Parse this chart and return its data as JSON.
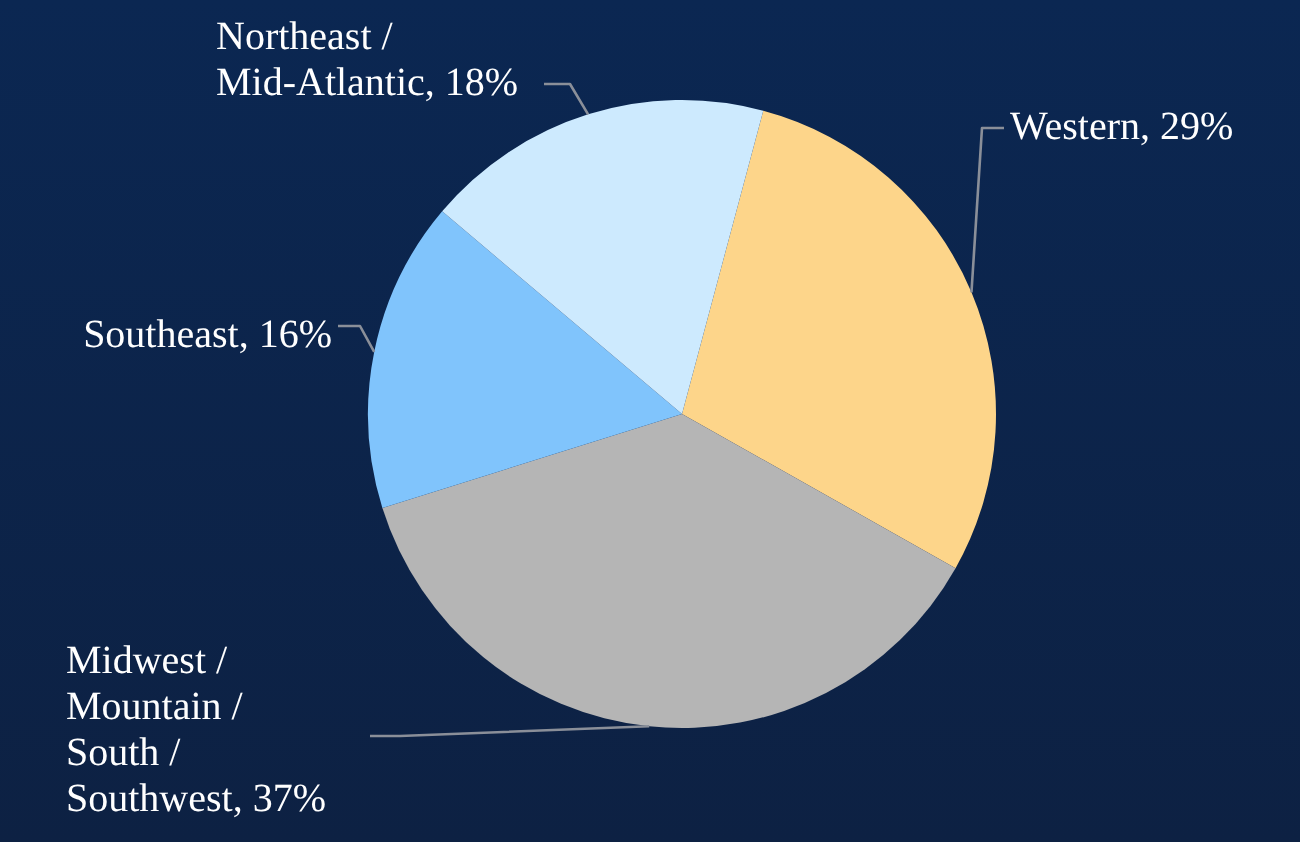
{
  "chart_data": {
    "type": "pie",
    "categories": [
      "Western",
      "Midwest / Mountain / South / Southwest",
      "Southeast",
      "Northeast / Mid-Atlantic"
    ],
    "values": [
      29,
      37,
      16,
      18
    ],
    "value_labels": [
      "29%",
      "37%",
      "16%",
      "18%"
    ],
    "colors": [
      "#fdd58a",
      "#b5b5b5",
      "#80c4fc",
      "#cdeafe"
    ],
    "legend": false
  }
}
